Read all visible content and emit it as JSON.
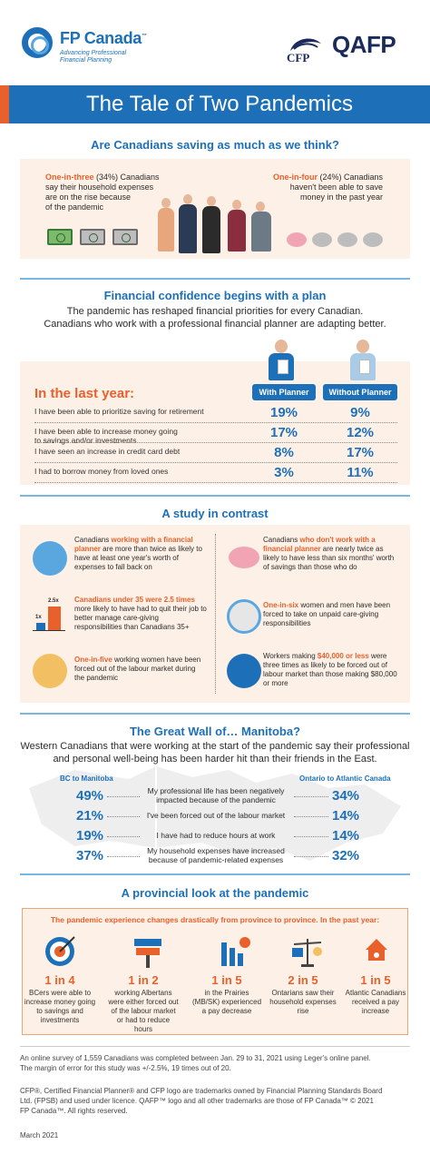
{
  "header": {
    "brand": "FP Canada",
    "tm": "™",
    "tagline_1": "Advancing Professional",
    "tagline_2": "Financial Planning",
    "cfp": "CFP",
    "qafp": "QAFP"
  },
  "title": "The Tale of Two Pandemics",
  "saving": {
    "heading": "Are Canadians saving as much as we think?",
    "left_highlight": "One-in-three",
    "left_text_1": " (34%) Canadians",
    "left_text_2": "say their household expenses",
    "left_text_3": "are on the rise because",
    "left_text_4": "of the pandemic",
    "right_highlight": "One-in-four",
    "right_text_1": " (24%) Canadians",
    "right_text_2": "haven't been able to save",
    "right_text_3": "money in the past year"
  },
  "confidence": {
    "heading": "Financial confidence begins with a plan",
    "intro_1": "The pandemic has reshaped financial priorities for every Canadian.",
    "intro_2": "Canadians who work with a professional financial planner are adapting better.",
    "period": "In the last year:",
    "col_with": "With Planner",
    "col_without": "Without Planner",
    "rows": [
      {
        "label_1": "I have been able to prioritize saving for retirement",
        "label_2": "",
        "with": "19%",
        "without": "9%"
      },
      {
        "label_1": "I have been able to increase money going",
        "label_2": "to savings and/or investments",
        "with": "17%",
        "without": "12%"
      },
      {
        "label_1": "I have seen an increase in credit card debt",
        "label_2": "",
        "with": "8%",
        "without": "17%"
      },
      {
        "label_1": "I had to borrow money from loved ones",
        "label_2": "",
        "with": "3%",
        "without": "11%"
      }
    ]
  },
  "contrast": {
    "heading": "A study in contrast",
    "items": [
      {
        "pre": "Canadians ",
        "hl": "working with a financial planner",
        "post": " are more than twice as likely to have at least one year's worth of expenses to fall back on"
      },
      {
        "pre": "Canadians ",
        "hl": "who don't work with a financial planner",
        "post": " are nearly twice as likely to have less than six months' worth of savings than those who do"
      },
      {
        "pre": "",
        "hl": "Canadians under 35 were 2.5 times",
        "post": " more likely to have had to quit their job to better manage care-giving responsibilities than Canadians 35+"
      },
      {
        "pre": "",
        "hl": "One-in-six",
        "post": " women and men have been forced to take on unpaid care-giving responsibilities"
      },
      {
        "pre": "",
        "hl": "One-in-five",
        "post": " working women have been forced out of the labour market during the pandemic"
      },
      {
        "pre": "Workers making ",
        "hl": "$40,000 or less",
        "post": " were three times as likely to be forced out of labour market than those making $80,000 or more"
      }
    ],
    "bar_small": "1x",
    "bar_big": "2.5x"
  },
  "manitoba": {
    "heading": "The Great Wall of… Manitoba?",
    "intro_1": "Western Canadians that were working at the start of the pandemic say their professional",
    "intro_2": "and personal well-being has been harder hit than their friends in the East.",
    "left_region": "BC to Manitoba",
    "right_region": "Ontario to Atlantic Canada",
    "rows": [
      {
        "left": "49%",
        "label_1": "My professional life has been negatively",
        "label_2": "impacted because of the pandemic",
        "right": "34%"
      },
      {
        "left": "21%",
        "label_1": "I've been forced out of the labour market",
        "label_2": "",
        "right": "14%"
      },
      {
        "left": "19%",
        "label_1": "I have had to reduce hours at work",
        "label_2": "",
        "right": "14%"
      },
      {
        "left": "37%",
        "label_1": "My household expenses have increased",
        "label_2": "because of pandemic-related expenses",
        "right": "32%"
      }
    ]
  },
  "provincial": {
    "heading": "A provincial look at the pandemic",
    "subheading": "The pandemic experience changes drastically from province to province. In the past year:",
    "items": [
      {
        "num": "1 in 4",
        "desc": "BCers were able to increase money going to savings and investments"
      },
      {
        "num": "1 in 2",
        "desc": "working Albertans were either forced out of the labour market or had to reduce hours"
      },
      {
        "num": "1 in 5",
        "desc": "in the Prairies (MB/SK) experienced a pay decrease"
      },
      {
        "num": "2 in 5",
        "desc": "Ontarians saw their household expenses rise"
      },
      {
        "num": "1 in 5",
        "desc": "Atlantic Canadians received a pay increase"
      }
    ]
  },
  "footer": {
    "survey_1": "An online survey of 1,559 Canadians was completed between Jan. 29 to 31, 2021 using Leger's online panel.",
    "survey_2": "The margin of error for this study was +/-2.5%, 19 times out of 20.",
    "legal_1": "CFP®, Certified Financial Planner® and CFP logo are trademarks owned by Financial Planning Standards Board",
    "legal_2": "Ltd. (FPSB) and used under licence. QAFP™ logo and all other trademarks are those of FP Canada™ © 2021",
    "legal_3": "FP Canada™. All rights reserved.",
    "date": "March 2021"
  },
  "colors": {
    "primary": "#1d70b8",
    "accent": "#e8602c",
    "peach": "#fdf1e7"
  }
}
